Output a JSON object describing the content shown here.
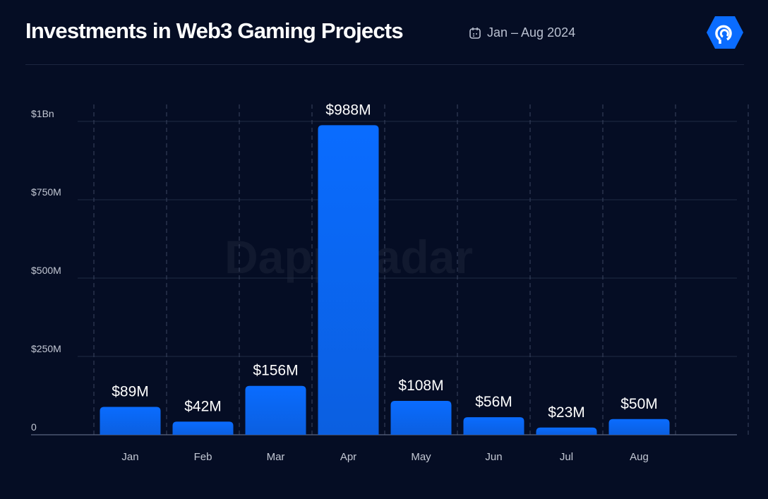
{
  "header": {
    "title": "Investments in Web3 Gaming Projects",
    "date_range": "Jan – Aug 2024",
    "date_icon": "calendar-icon",
    "logo": "DappRadar",
    "brand_color": "#0a6cff"
  },
  "watermark": "DappRadar",
  "chart_data": {
    "type": "bar",
    "title": "Investments in Web3 Gaming Projects",
    "categories": [
      "Jan",
      "Feb",
      "Mar",
      "Apr",
      "May",
      "Jun",
      "Jul",
      "Aug"
    ],
    "values": [
      89,
      42,
      156,
      988,
      108,
      56,
      23,
      50
    ],
    "data_labels": [
      "$89M",
      "$42M",
      "$156M",
      "$988M",
      "$108M",
      "$56M",
      "$23M",
      "$50M"
    ],
    "unit": "USD millions",
    "ylim": [
      0,
      1000
    ],
    "yticks": [
      0,
      250,
      500,
      750,
      1000
    ],
    "ytick_labels": [
      "0",
      "$250M",
      "$500M",
      "$750M",
      "$1Bn"
    ],
    "grid": true,
    "bar_color": "#0a6cff",
    "xlabel": "",
    "ylabel": ""
  }
}
